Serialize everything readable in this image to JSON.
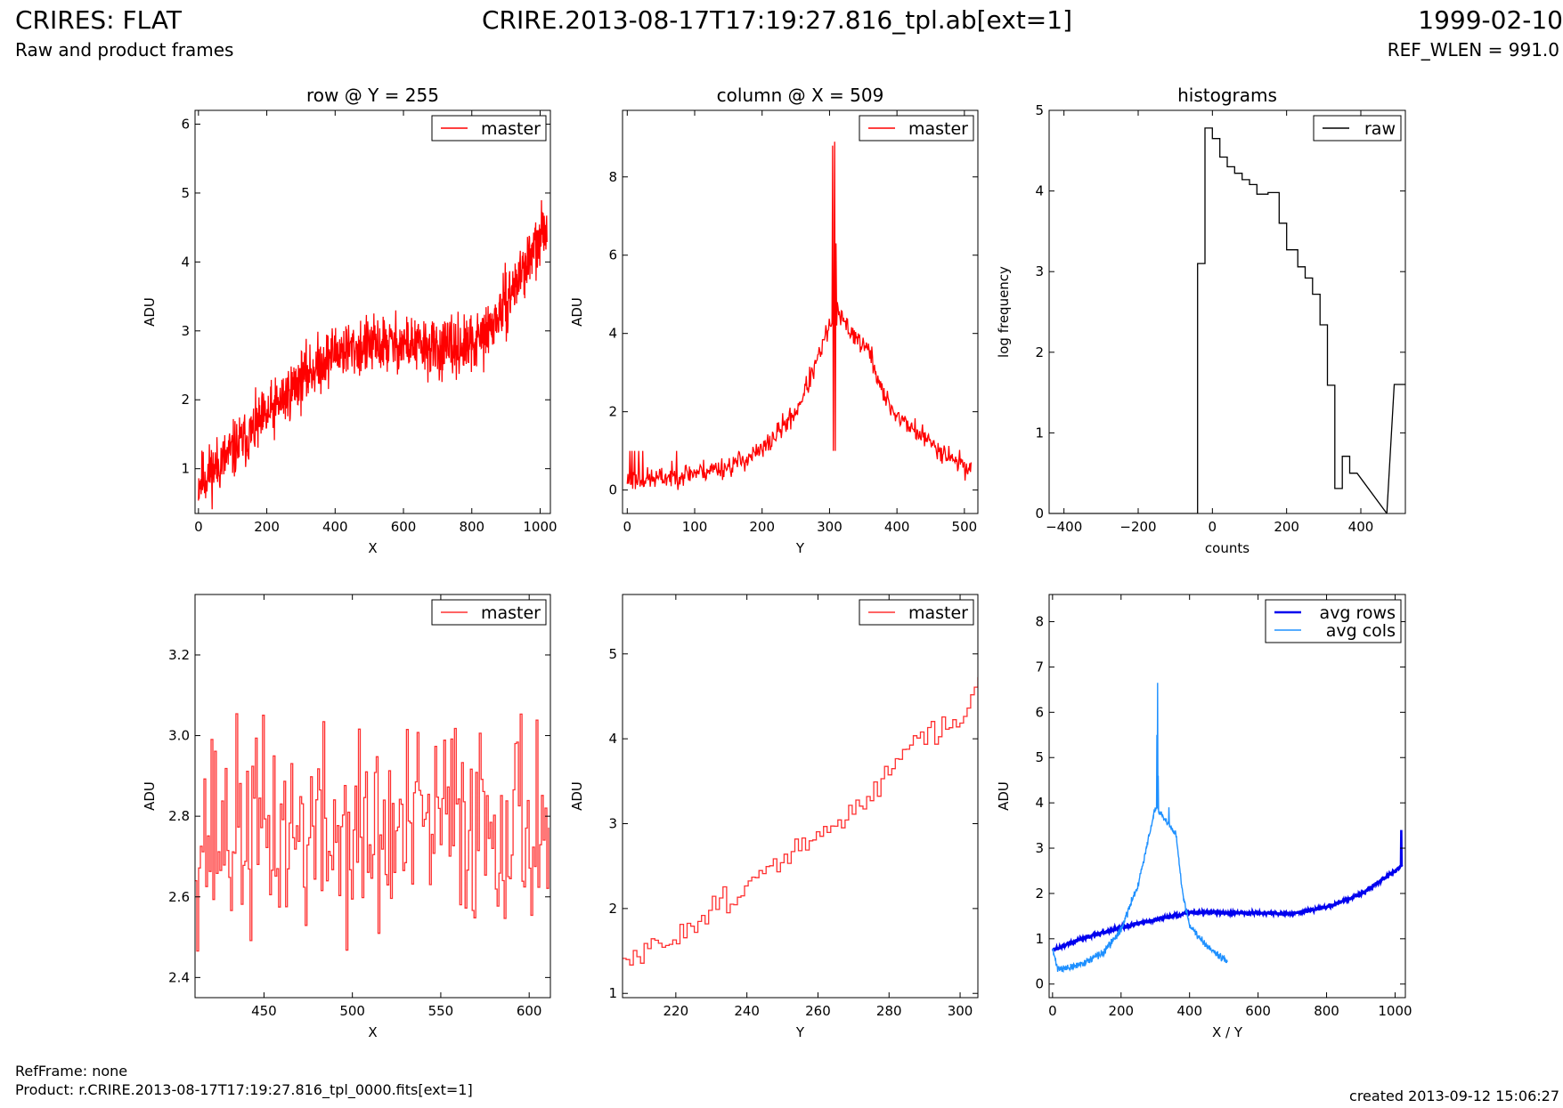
{
  "header": {
    "title_left": "CRIRES: FLAT",
    "title_center": "CRIRE.2013-08-17T17:19:27.816_tpl.ab[ext=1]",
    "title_right": "1999-02-10",
    "subtitle_left": "Raw and product frames",
    "subtitle_right": "REF_WLEN = 991.0"
  },
  "footer": {
    "ref_frame": "RefFrame: none",
    "product": "Product: r.CRIRE.2013-08-17T17:19:27.816_tpl_0000.fits[ext=1]",
    "created": "created 2013-09-12 15:06:27"
  },
  "chart_data": [
    {
      "type": "line",
      "title": "row @ Y = 255",
      "xlabel": "X",
      "ylabel": "ADU",
      "xlim": [
        -10,
        1030
      ],
      "ylim": [
        0.35,
        6.2
      ],
      "xticks": [
        0,
        200,
        400,
        600,
        800,
        1000
      ],
      "yticks": [
        1,
        2,
        3,
        4,
        5,
        6
      ],
      "legend": "top-right",
      "series": [
        {
          "name": "master",
          "color": "#ff0000",
          "noise": 0.32,
          "seed": 11,
          "n": 1020,
          "x_range": [
            0,
            1020
          ],
          "profile": [
            [
              0,
              0.8
            ],
            [
              100,
              1.25
            ],
            [
              200,
              1.75
            ],
            [
              300,
              2.3
            ],
            [
              400,
              2.7
            ],
            [
              500,
              2.78
            ],
            [
              600,
              2.82
            ],
            [
              700,
              2.72
            ],
            [
              800,
              2.78
            ],
            [
              850,
              3.0
            ],
            [
              900,
              3.4
            ],
            [
              950,
              3.9
            ],
            [
              1000,
              4.3
            ],
            [
              1020,
              4.6
            ]
          ]
        }
      ]
    },
    {
      "type": "line",
      "title": "column @ X = 509",
      "xlabel": "Y",
      "ylabel": "ADU",
      "xlim": [
        -7,
        520
      ],
      "ylim": [
        -0.6,
        9.7
      ],
      "xticks": [
        0,
        100,
        200,
        300,
        400,
        500
      ],
      "yticks": [
        0,
        2,
        4,
        6,
        8
      ],
      "legend": "top-right",
      "series": [
        {
          "name": "master",
          "color": "#ff0000",
          "noise": 0.22,
          "seed": 23,
          "n": 510,
          "x_range": [
            0,
            510
          ],
          "profile": [
            [
              0,
              0.25
            ],
            [
              50,
              0.3
            ],
            [
              100,
              0.45
            ],
            [
              150,
              0.6
            ],
            [
              200,
              1.0
            ],
            [
              250,
              2.0
            ],
            [
              280,
              3.2
            ],
            [
              300,
              4.2
            ],
            [
              310,
              4.5
            ],
            [
              330,
              4.1
            ],
            [
              360,
              3.5
            ],
            [
              380,
              2.4
            ],
            [
              400,
              1.9
            ],
            [
              450,
              1.2
            ],
            [
              510,
              0.5
            ]
          ],
          "spikes": [
            [
              4,
              1.0
            ],
            [
              7,
              1.0
            ],
            [
              11,
              1.0
            ],
            [
              17,
              1.0
            ],
            [
              23,
              1.0
            ],
            [
              73,
              1.0
            ],
            [
              305,
              8.8
            ],
            [
              306,
              1.0
            ],
            [
              308,
              8.9
            ],
            [
              309,
              1.0
            ],
            [
              310,
              6.3
            ],
            [
              312,
              4.8
            ]
          ]
        }
      ]
    },
    {
      "type": "line",
      "title": "histograms",
      "xlabel": "counts",
      "ylabel": "log frequency",
      "xlim": [
        -440,
        520
      ],
      "ylim": [
        0,
        5
      ],
      "xticks": [
        -400,
        -200,
        0,
        200,
        400
      ],
      "yticks": [
        0,
        1,
        2,
        3,
        4,
        5
      ],
      "legend": "top-right",
      "series": [
        {
          "name": "raw",
          "color": "#000000",
          "step": true,
          "x": [
            -440,
            -40,
            -40,
            -20,
            -20,
            0,
            0,
            20,
            20,
            40,
            40,
            60,
            60,
            80,
            80,
            100,
            100,
            120,
            120,
            150,
            150,
            180,
            180,
            200,
            200,
            230,
            230,
            250,
            250,
            270,
            270,
            290,
            290,
            310,
            310,
            330,
            330,
            350,
            350,
            370,
            370,
            390,
            390,
            470,
            470,
            490,
            490,
            520
          ],
          "y": [
            0,
            0,
            3.1,
            3.1,
            4.78,
            4.78,
            4.65,
            4.65,
            4.42,
            4.42,
            4.3,
            4.3,
            4.22,
            4.22,
            4.14,
            4.14,
            4.08,
            4.08,
            3.96,
            3.96,
            3.98,
            3.98,
            3.6,
            3.6,
            3.27,
            3.27,
            3.06,
            3.06,
            2.92,
            2.92,
            2.72,
            2.72,
            2.34,
            2.34,
            1.59,
            1.59,
            0.31,
            0.31,
            0.71,
            0.71,
            0.5,
            0.5,
            0.5,
            0.0,
            0.0,
            1.6,
            1.6,
            1.6
          ]
        }
      ]
    },
    {
      "type": "line",
      "title": "",
      "xlabel": "X",
      "ylabel": "ADU",
      "xlim": [
        411,
        612
      ],
      "ylim": [
        2.35,
        3.35
      ],
      "xticks": [
        450,
        500,
        550,
        600
      ],
      "yticks": [
        2.4,
        2.6,
        2.8,
        3.0,
        3.2
      ],
      "legend": "top-right",
      "series": [
        {
          "name": "master",
          "color": "#ff3030",
          "step": true,
          "noise": 0.2,
          "seed": 37,
          "n": 200,
          "x_range": [
            411,
            611
          ],
          "profile": [
            [
              411,
              2.76
            ],
            [
              460,
              2.76
            ],
            [
              520,
              2.74
            ],
            [
              560,
              2.8
            ],
            [
              611,
              2.79
            ]
          ]
        }
      ]
    },
    {
      "type": "line",
      "title": "",
      "xlabel": "Y",
      "ylabel": "ADU",
      "xlim": [
        205,
        305
      ],
      "ylim": [
        0.95,
        5.7
      ],
      "xticks": [
        220,
        240,
        260,
        280,
        300
      ],
      "yticks": [
        1,
        2,
        3,
        4,
        5
      ],
      "legend": "top-right",
      "series": [
        {
          "name": "master",
          "color": "#ff3030",
          "step": true,
          "noise": 0.12,
          "seed": 51,
          "n": 100,
          "x_range": [
            205,
            305
          ],
          "profile": [
            [
              205,
              1.35
            ],
            [
              215,
              1.55
            ],
            [
              225,
              1.85
            ],
            [
              235,
              2.15
            ],
            [
              245,
              2.4
            ],
            [
              255,
              2.75
            ],
            [
              265,
              2.95
            ],
            [
              275,
              3.35
            ],
            [
              285,
              4.0
            ],
            [
              295,
              4.1
            ],
            [
              300,
              4.2
            ],
            [
              305,
              4.7
            ]
          ]
        }
      ]
    },
    {
      "type": "line",
      "title": "",
      "xlabel": "X / Y",
      "ylabel": "ADU",
      "xlim": [
        -10,
        1030
      ],
      "ylim": [
        -0.3,
        8.6
      ],
      "xticks": [
        0,
        200,
        400,
        600,
        800,
        1000
      ],
      "yticks": [
        0,
        1,
        2,
        3,
        4,
        5,
        6,
        7,
        8
      ],
      "legend": "top-right",
      "series": [
        {
          "name": "avg rows",
          "color": "#0000ee",
          "width": 2.6,
          "noise": 0.03,
          "seed": 63,
          "n": 1020,
          "x_range": [
            0,
            1020
          ],
          "profile": [
            [
              0,
              0.75
            ],
            [
              100,
              1.05
            ],
            [
              200,
              1.25
            ],
            [
              300,
              1.42
            ],
            [
              400,
              1.58
            ],
            [
              500,
              1.58
            ],
            [
              600,
              1.57
            ],
            [
              700,
              1.55
            ],
            [
              800,
              1.7
            ],
            [
              900,
              1.98
            ],
            [
              1000,
              2.5
            ],
            [
              1020,
              2.62
            ]
          ],
          "spikes": [
            [
              1018,
              3.4
            ],
            [
              1019,
              2.6
            ]
          ]
        },
        {
          "name": "avg cols",
          "color": "#1e90ff",
          "width": 1.4,
          "noise": 0.06,
          "seed": 71,
          "n": 510,
          "x_range": [
            0,
            510
          ],
          "profile": [
            [
              0,
              0.75
            ],
            [
              15,
              0.35
            ],
            [
              50,
              0.35
            ],
            [
              100,
              0.5
            ],
            [
              150,
              0.7
            ],
            [
              200,
              1.2
            ],
            [
              250,
              2.2
            ],
            [
              280,
              3.2
            ],
            [
              300,
              3.9
            ],
            [
              330,
              3.6
            ],
            [
              360,
              3.3
            ],
            [
              380,
              2.0
            ],
            [
              400,
              1.3
            ],
            [
              450,
              0.85
            ],
            [
              510,
              0.5
            ]
          ],
          "spikes": [
            [
              305,
              5.5
            ],
            [
              307,
              6.65
            ],
            [
              309,
              4.6
            ],
            [
              340,
              3.9
            ]
          ]
        }
      ]
    }
  ]
}
